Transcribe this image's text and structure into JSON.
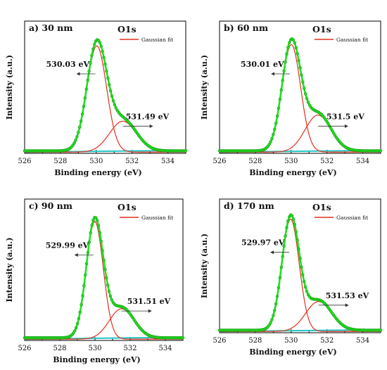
{
  "colors": {
    "fit": "#e0301e",
    "data": "#22e022",
    "data_edge": "#149a14",
    "baseline": "#24c6c6",
    "text": "#111111",
    "axis": "#000000"
  },
  "chart_data": [
    {
      "type": "line",
      "panel_label": "a) 30 nm",
      "title": "O1s",
      "legend": "Gaussian fit",
      "xlabel": "Binding energy (eV)",
      "ylabel": "Intensity (a.u.)",
      "xlim": [
        526,
        535
      ],
      "ylim": [
        0,
        1.07
      ],
      "xticks": [
        526,
        528,
        530,
        532,
        534
      ],
      "peaks": [
        {
          "center": 530.03,
          "sigma": 0.55,
          "amplitude": 0.86,
          "label": "530.03 eV",
          "arrow": "left"
        },
        {
          "center": 531.49,
          "sigma": 0.75,
          "amplitude": 0.25,
          "label": "531.49 eV",
          "arrow": "right"
        }
      ],
      "background": 0.02
    },
    {
      "type": "line",
      "panel_label": "b) 60 nm",
      "title": "O1s",
      "legend": "Gaussian fit",
      "xlabel": "Binding energy (eV)",
      "ylabel": "Intensity (a.u.)",
      "xlim": [
        526,
        535
      ],
      "ylim": [
        0,
        1.07
      ],
      "xticks": [
        526,
        528,
        530,
        532,
        534
      ],
      "peaks": [
        {
          "center": 530.01,
          "sigma": 0.52,
          "amplitude": 0.87,
          "label": "530.01 eV",
          "arrow": "left"
        },
        {
          "center": 531.5,
          "sigma": 0.72,
          "amplitude": 0.3,
          "label": "531.5 eV",
          "arrow": "right"
        }
      ],
      "background": 0.02
    },
    {
      "type": "line",
      "panel_label": "c) 90 nm",
      "title": "O1s",
      "legend": "Gaussian fit",
      "xlabel": "Binding energy (eV)",
      "ylabel": "Intensity (a.u.)",
      "xlim": [
        526,
        535
      ],
      "ylim": [
        0,
        1.07
      ],
      "xticks": [
        526,
        528,
        530,
        532,
        534
      ],
      "peaks": [
        {
          "center": 529.99,
          "sigma": 0.48,
          "amplitude": 0.89,
          "label": "529.99 eV",
          "arrow": "left"
        },
        {
          "center": 531.51,
          "sigma": 0.7,
          "amplitude": 0.23,
          "label": "531.51 eV",
          "arrow": "right"
        }
      ],
      "background": 0.02
    },
    {
      "type": "line",
      "panel_label": "d) 170 nm",
      "title": "O1s",
      "legend": "Gaussian fit",
      "xlabel": "Binding energy (eV)",
      "ylabel": "Intensity (a.u.)",
      "xlim": [
        526,
        535
      ],
      "ylim": [
        0,
        1.07
      ],
      "xticks": [
        526,
        528,
        530,
        532,
        534
      ],
      "peaks": [
        {
          "center": 529.97,
          "sigma": 0.48,
          "amplitude": 0.9,
          "label": "529.97 eV",
          "arrow": "left"
        },
        {
          "center": 531.53,
          "sigma": 0.72,
          "amplitude": 0.24,
          "label": "531.53 eV",
          "arrow": "right"
        }
      ],
      "background": 0.02
    }
  ]
}
